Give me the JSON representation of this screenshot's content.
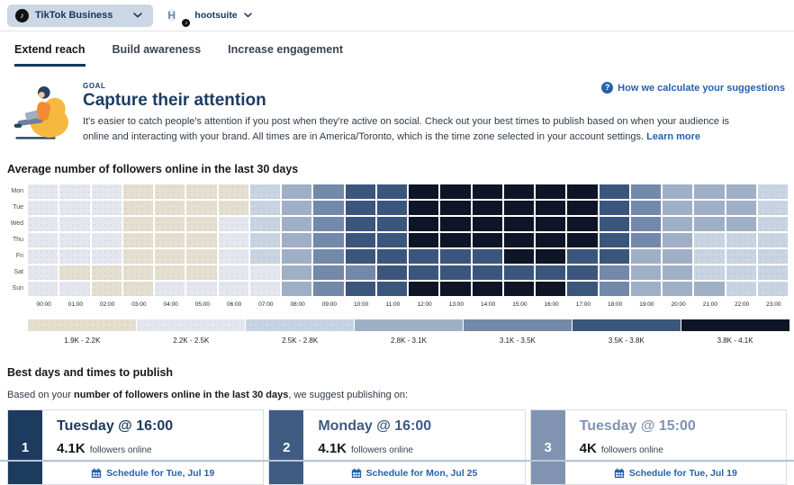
{
  "topbar": {
    "account_selector": {
      "label": "TikTok Business",
      "icon": "tiktok-icon"
    },
    "user": {
      "initial": "H",
      "name": "hootsuite",
      "badge_icon": "tiktok-icon"
    }
  },
  "tabs": [
    {
      "label": "Extend reach",
      "active": true
    },
    {
      "label": "Build awareness",
      "active": false
    },
    {
      "label": "Increase engagement",
      "active": false
    }
  ],
  "goal": {
    "eyebrow": "GOAL",
    "title": "Capture their attention",
    "description": "It's easier to catch people's attention if you post when they're active on social. Check out your best times to publish based on when your audience is online and interacting with your brand. All times are in America/Toronto, which is the time zone selected in your account settings.",
    "learn_more_label": "Learn more",
    "help_link_label": "How we calculate your suggestions",
    "help_icon_glyph": "?"
  },
  "icons": {
    "tiktok_glyph": "♪"
  },
  "colors": {
    "link_blue": "#2562ac",
    "brand_navy": "#16365c",
    "pill_bg": "#ccd7e5"
  },
  "chart_data": {
    "type": "heatmap",
    "title": "Average number of followers online in the last 30 days",
    "rows": [
      "Mon",
      "Tue",
      "Wed",
      "Thu",
      "Fri",
      "Sat",
      "Sun"
    ],
    "columns": [
      "00:00",
      "01:00",
      "02:00",
      "03:00",
      "04:00",
      "05:00",
      "06:00",
      "07:00",
      "08:00",
      "09:00",
      "10:00",
      "11:00",
      "12:00",
      "13:00",
      "14:00",
      "15:00",
      "16:00",
      "17:00",
      "18:00",
      "19:00",
      "20:00",
      "21:00",
      "22:00",
      "23:00"
    ],
    "legend": [
      {
        "label": "1.9K - 2.2K",
        "color": "#e4dfcf",
        "dotted": true
      },
      {
        "label": "2.2K - 2.5K",
        "color": "#e4e7ef",
        "dotted": true
      },
      {
        "label": "2.5K - 2.8K",
        "color": "#c9d4e3",
        "dotted": true
      },
      {
        "label": "2.8K - 3.1K",
        "color": "#9fafc6",
        "dotted": false
      },
      {
        "label": "3.1K - 3.5K",
        "color": "#7389a9",
        "dotted": false
      },
      {
        "label": "3.5K - 3.8K",
        "color": "#3b567c",
        "dotted": false
      },
      {
        "label": "3.8K - 4.1K",
        "color": "#0d1526",
        "dotted": false
      }
    ],
    "values_are_legend_bucket_indices_1_to_7": true,
    "values": [
      [
        2,
        2,
        2,
        1,
        1,
        1,
        1,
        3,
        4,
        5,
        6,
        6,
        7,
        7,
        7,
        7,
        7,
        7,
        6,
        5,
        4,
        4,
        4,
        3
      ],
      [
        2,
        2,
        2,
        1,
        1,
        1,
        1,
        3,
        4,
        5,
        6,
        6,
        7,
        7,
        7,
        7,
        7,
        7,
        6,
        5,
        4,
        4,
        4,
        3
      ],
      [
        2,
        2,
        2,
        1,
        1,
        1,
        2,
        3,
        4,
        5,
        6,
        6,
        7,
        7,
        7,
        7,
        7,
        7,
        6,
        5,
        4,
        4,
        4,
        3
      ],
      [
        2,
        2,
        2,
        1,
        1,
        1,
        2,
        3,
        4,
        5,
        6,
        6,
        7,
        7,
        7,
        7,
        7,
        7,
        6,
        5,
        4,
        3,
        3,
        3
      ],
      [
        2,
        2,
        2,
        1,
        1,
        1,
        2,
        3,
        4,
        5,
        6,
        6,
        6,
        6,
        6,
        7,
        7,
        6,
        6,
        4,
        4,
        3,
        3,
        3
      ],
      [
        2,
        1,
        1,
        1,
        1,
        1,
        2,
        2,
        4,
        5,
        5,
        6,
        6,
        6,
        6,
        6,
        6,
        6,
        5,
        4,
        4,
        3,
        3,
        3
      ],
      [
        2,
        2,
        1,
        1,
        2,
        2,
        2,
        2,
        4,
        5,
        6,
        6,
        7,
        7,
        7,
        7,
        7,
        6,
        5,
        4,
        4,
        4,
        3,
        3
      ]
    ]
  },
  "suggestions": {
    "heading": "Best days and times to publish",
    "intro_prefix": "Based on your ",
    "intro_bold": "number of followers online in the last 30 days",
    "intro_suffix": ", we suggest publishing on:",
    "cards": [
      {
        "rank": "1",
        "title": "Tuesday @ 16:00",
        "value": "4.1K",
        "value_caption": "followers online",
        "cta": "Schedule for Tue, Jul 19",
        "accent": "#1d3a5f"
      },
      {
        "rank": "2",
        "title": "Monday @ 16:00",
        "value": "4.1K",
        "value_caption": "followers online",
        "cta": "Schedule for Mon, Jul 25",
        "accent": "#3f5b82"
      },
      {
        "rank": "3",
        "title": "Tuesday @ 15:00",
        "value": "4K",
        "value_caption": "followers online",
        "cta": "Schedule for Tue, Jul 19",
        "accent": "#8094b1"
      }
    ]
  }
}
